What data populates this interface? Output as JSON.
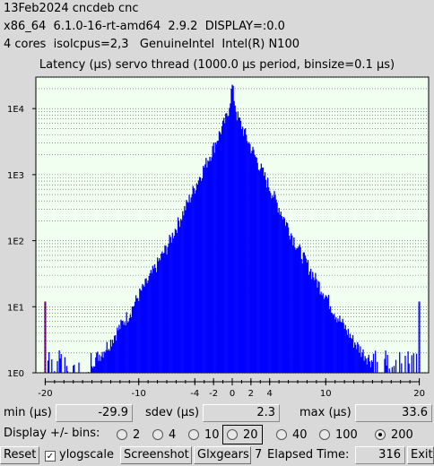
{
  "header": {
    "line1": "13Feb2024 cncdeb cnc",
    "line2": "x86_64  6.1.0-16-rt-amd64  2.9.2  DISPLAY=:0.0",
    "line3": "4 cores  isolcpus=2,3   GenuineIntel  Intel(R) N100"
  },
  "chart_data": {
    "type": "bar",
    "title": "Latency (µs) servo thread (1000.0 µs period, binsize=0.1 µs)",
    "x_ticks": [
      "-20",
      "-10",
      "-4",
      "-2",
      "0",
      "2",
      "4",
      "10",
      "20"
    ],
    "x_tick_values": [
      -20,
      -10,
      -4,
      -2,
      0,
      2,
      4,
      10,
      20
    ],
    "y_ticks": [
      "1E0",
      "1E1",
      "1E2",
      "1E3",
      "1E4"
    ],
    "y_scale": "log",
    "ylim": [
      1,
      30000
    ],
    "xlim": [
      -21,
      21
    ],
    "grid": true,
    "bar_color": "#0000ff",
    "plot_bg": "#f0fff0",
    "envelope": {
      "x": [
        -20.0,
        -19.8,
        -19.0,
        -18.0,
        -17.0,
        -16.0,
        -15.0,
        -14.0,
        -13.0,
        -12.0,
        -11.0,
        -10.0,
        -9.0,
        -8.0,
        -7.0,
        -6.0,
        -5.0,
        -4.0,
        -3.0,
        -2.0,
        -1.0,
        -0.5,
        0.0,
        0.5,
        1.0,
        2.0,
        3.0,
        4.0,
        5.0,
        6.0,
        7.0,
        8.0,
        9.0,
        10.0,
        11.0,
        12.0,
        13.0,
        14.0,
        15.0,
        16.0,
        17.0,
        18.0,
        19.0,
        19.8,
        20.0
      ],
      "y": [
        12,
        1,
        1,
        1,
        1,
        1.2,
        1.5,
        2,
        3,
        5,
        8,
        15,
        25,
        45,
        80,
        160,
        320,
        650,
        1300,
        2600,
        5500,
        8000,
        22000,
        8000,
        5500,
        2600,
        1300,
        650,
        320,
        160,
        80,
        45,
        25,
        15,
        8,
        5,
        3,
        2,
        1.5,
        1.2,
        1,
        1,
        1,
        1,
        12
      ]
    }
  },
  "stats": {
    "min_label": "min (µs)",
    "min_value": "-29.9",
    "sdev_label": "sdev (µs)",
    "sdev_value": "2.3",
    "max_label": "max (µs)",
    "max_value": "33.6"
  },
  "bins": {
    "label": "Display +/- bins:",
    "options": [
      "2",
      "4",
      "10",
      "20",
      "40",
      "100",
      "200"
    ],
    "selected": "200"
  },
  "toolbar": {
    "reset": "Reset",
    "ylogscale": "ylogscale",
    "ylogscale_checked": "✓",
    "screenshot": "Screenshot",
    "glxgears": "Glxgears",
    "glx_count": "7",
    "elapsed_label": "Elapsed Time:",
    "elapsed_value": "316",
    "exit": "Exit"
  }
}
